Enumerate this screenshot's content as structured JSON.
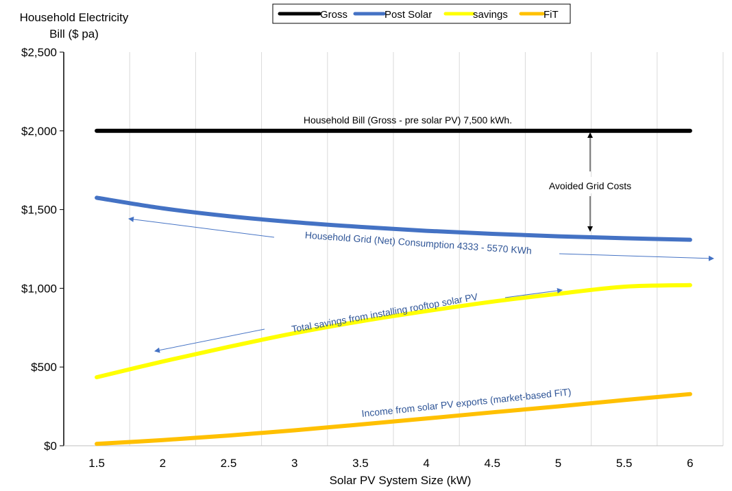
{
  "chart_data": {
    "type": "line",
    "ylabel_lines": [
      "Household Electricity",
      "Bill  ($ pa)"
    ],
    "xlabel": "Solar PV System Size (kW)",
    "x": [
      1.5,
      2,
      2.5,
      3,
      3.5,
      4,
      4.5,
      5,
      5.5,
      6
    ],
    "x_tick_labels": [
      "1.5",
      "2",
      "2.5",
      "3",
      "3.5",
      "4",
      "4.5",
      "5",
      "5.5",
      "6"
    ],
    "xlim": [
      1.25,
      6.25
    ],
    "ylim": [
      0,
      2500
    ],
    "y_ticks": [
      0,
      500,
      1000,
      1500,
      2000,
      2500
    ],
    "y_tick_labels": [
      "$0",
      "$500",
      "$1,000",
      "$1,500",
      "$2,000",
      "$2,500"
    ],
    "grid": "vertical",
    "legend_position": "top-center",
    "series": [
      {
        "name": "Gross",
        "color": "#000000",
        "values": [
          2000,
          2000,
          2000,
          2000,
          2000,
          2000,
          2000,
          2000,
          2000,
          2000
        ]
      },
      {
        "name": "Post Solar",
        "color": "#4472C4",
        "values": [
          1575,
          1508,
          1458,
          1420,
          1390,
          1365,
          1346,
          1330,
          1318,
          1308
        ]
      },
      {
        "name": "savings",
        "color": "#FFFF00",
        "values": [
          435,
          535,
          628,
          715,
          790,
          855,
          915,
          965,
          1010,
          1020
        ]
      },
      {
        "name": "FiT",
        "color": "#FFC000",
        "values": [
          12,
          36,
          65,
          98,
          135,
          173,
          212,
          250,
          290,
          328
        ]
      }
    ],
    "annotations": [
      {
        "text": "Household Bill (Gross - pre solar PV) 7,500 kWh.",
        "color": "#000000"
      },
      {
        "text": "Avoided Grid Costs",
        "color": "#000000"
      },
      {
        "text": "Household Grid (Net) Consumption 4333 - 5570 KWh",
        "color": "#2F5597"
      },
      {
        "text": "Total savings from installing rooftop solar PV",
        "color": "#2F5597"
      },
      {
        "text": "Income from solar PV exports (market-based FiT)",
        "color": "#2F5597"
      }
    ]
  }
}
